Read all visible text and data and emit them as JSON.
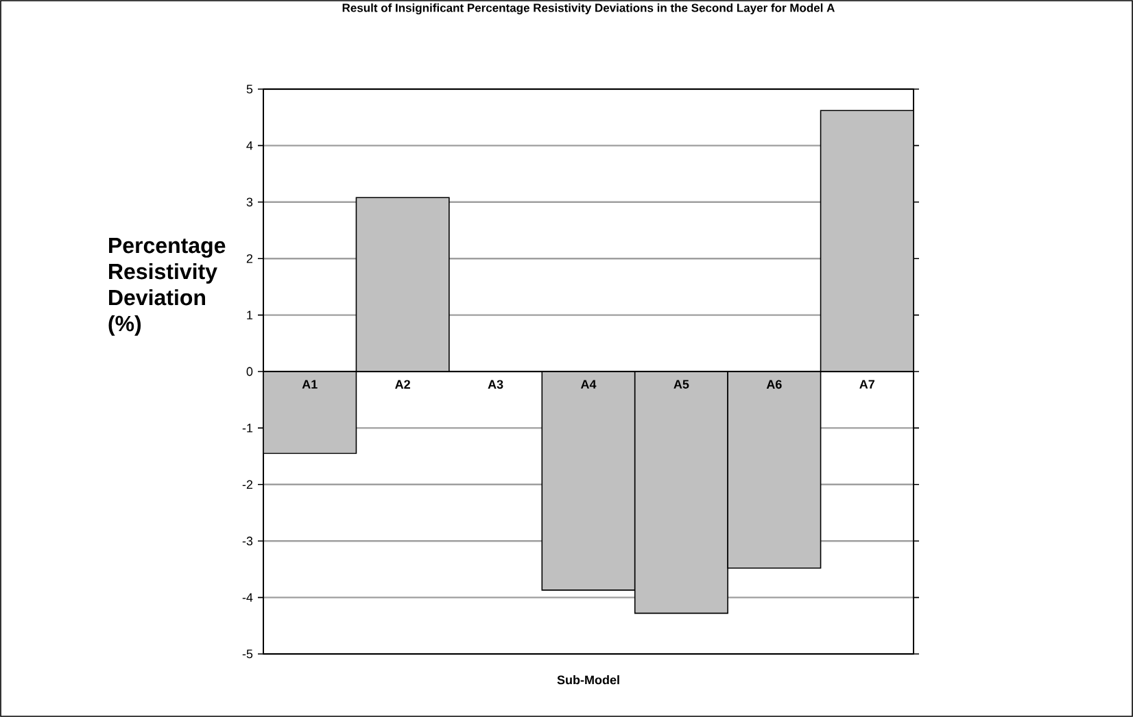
{
  "chart_data": {
    "type": "bar",
    "title": "Result of Insignificant Percentage  Resistivity Deviations in  the Second Layer for Model A",
    "xlabel": "Sub-Model",
    "ylabel": "Percentage Resistivity Deviation (%)",
    "categories": [
      "A1",
      "A2",
      "A3",
      "A4",
      "A5",
      "A6",
      "A7"
    ],
    "values": [
      -1.45,
      3.08,
      0,
      -3.87,
      -4.28,
      -3.48,
      4.62
    ],
    "color": "#c0c0c0",
    "ylim": [
      -5,
      5
    ],
    "yticks": [
      -5,
      -4,
      -3,
      -2,
      -1,
      0,
      1,
      2,
      3,
      4,
      5
    ],
    "grid": "y"
  }
}
